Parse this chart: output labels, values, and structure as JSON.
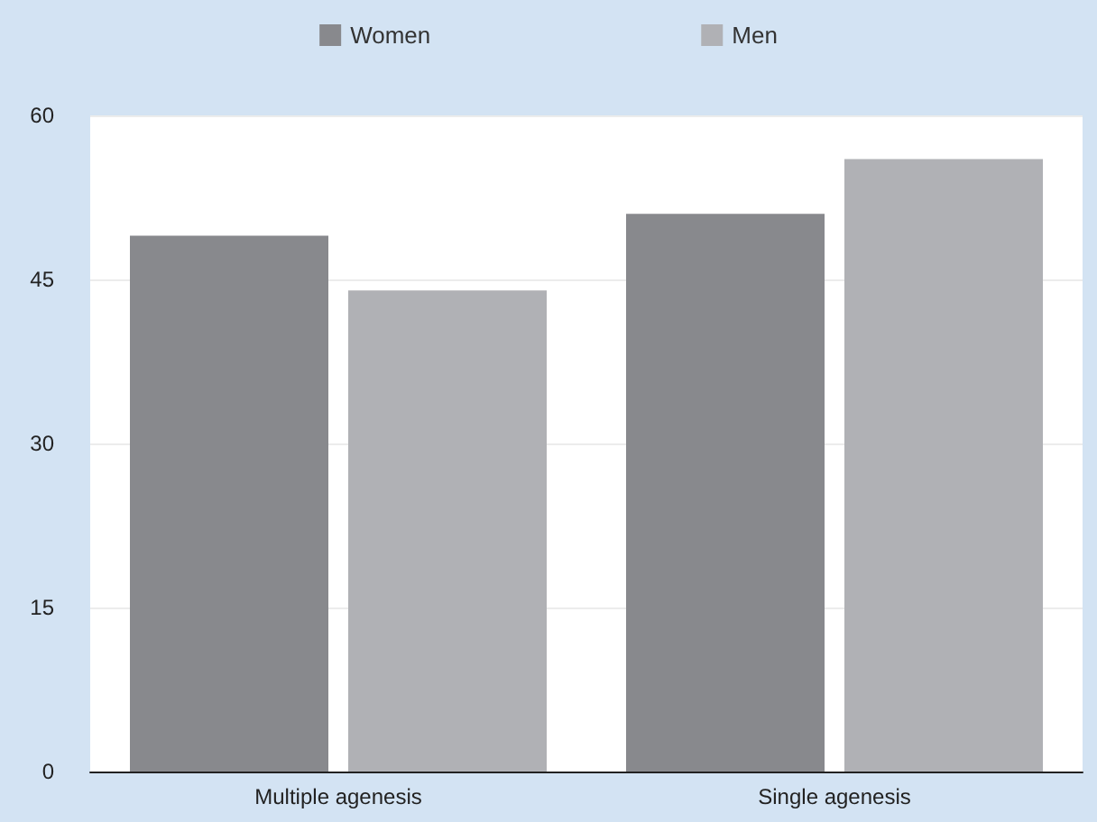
{
  "chart_data": {
    "type": "bar",
    "categories": [
      "Multiple agenesis",
      "Single agenesis"
    ],
    "series": [
      {
        "name": "Women",
        "color": "#88898d",
        "values": [
          49,
          51
        ]
      },
      {
        "name": "Men",
        "color": "#b0b1b5",
        "values": [
          44,
          56
        ]
      }
    ],
    "ylim": [
      0,
      60
    ],
    "yticks": [
      0,
      15,
      30,
      45,
      60
    ],
    "grid": "y",
    "legend": "top"
  }
}
